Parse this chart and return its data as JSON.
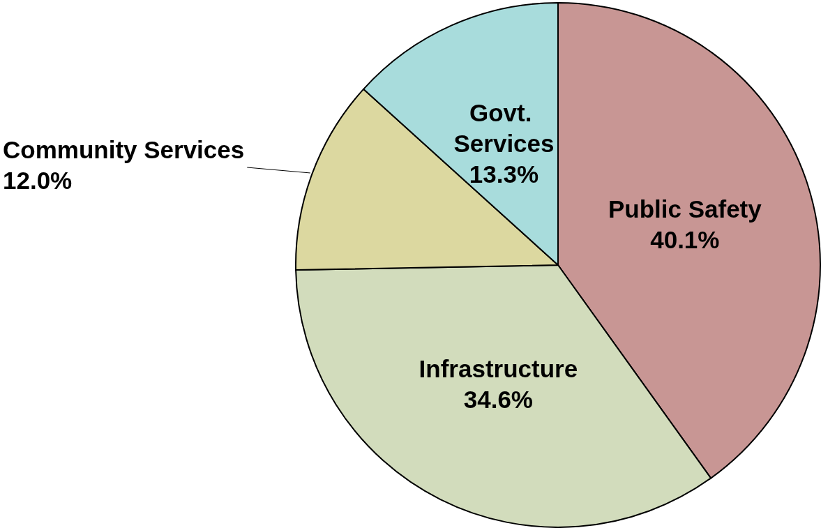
{
  "chart_data": {
    "type": "pie",
    "categories": [
      "Public Safety",
      "Infrastructure",
      "Community Services",
      "Govt. Services"
    ],
    "values": [
      40.1,
      34.6,
      12.0,
      13.3
    ],
    "value_labels": [
      "40.1%",
      "34.6%",
      "12.0%",
      "13.3%"
    ],
    "colors": [
      "#c89694",
      "#d2dcbc",
      "#dcd8a0",
      "#a8dcdc"
    ],
    "legend": false
  }
}
